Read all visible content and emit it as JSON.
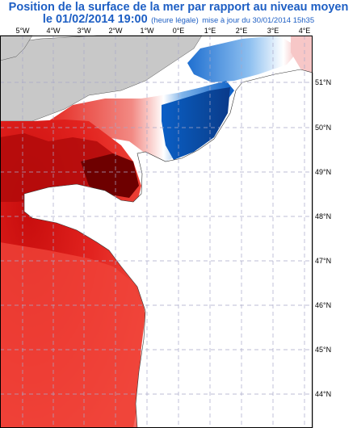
{
  "title": {
    "line1": "Position de la surface de la mer par rapport au niveau moyen",
    "line2_date": "le 01/02/2014 19:00",
    "line2_note": "(heure légale)",
    "line2_update": "mise à jour du 30/01/2014 15h35"
  },
  "axes": {
    "lon_labels": [
      "5°W",
      "4°W",
      "3°W",
      "2°W",
      "1°W",
      "0°E",
      "1°E",
      "2°E",
      "3°E",
      "4°E"
    ],
    "lat_labels": [
      "51°N",
      "50°N",
      "49°N",
      "48°N",
      "47°N",
      "46°N",
      "45°N",
      "44°N"
    ]
  },
  "colors": {
    "land": "#c8c8c8",
    "grid": "#a8a8c8",
    "high": "#7a0000",
    "positive": "#e21b1b",
    "negative": "#0a5fc8",
    "low": "#0a3a8a"
  }
}
